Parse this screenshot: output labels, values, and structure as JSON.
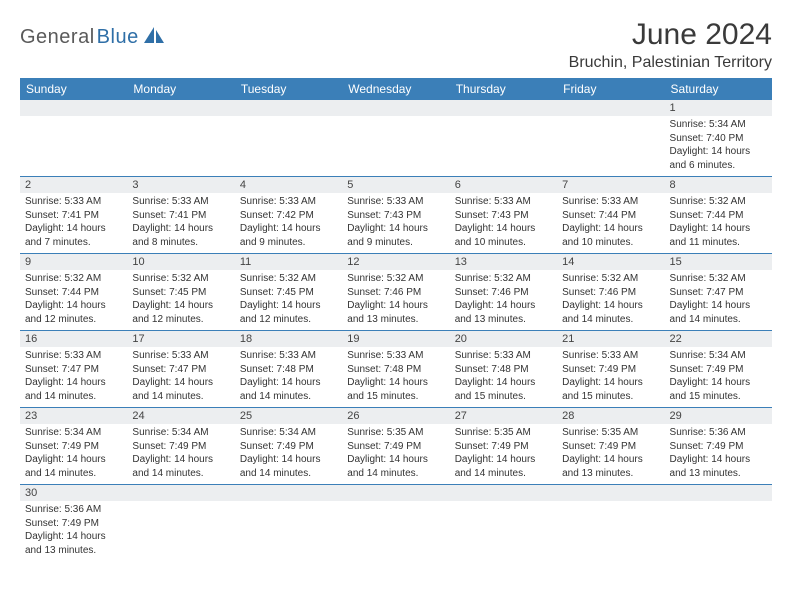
{
  "logo": {
    "word1": "General",
    "word2": "Blue",
    "color_dark": "#5a5a5a",
    "color_blue": "#2f6fa7"
  },
  "title": "June 2024",
  "location": "Bruchin, Palestinian Territory",
  "colors": {
    "header_bg": "#3b7fb8",
    "header_text": "#ffffff",
    "row_band": "#eceef0",
    "border": "#3b7fb8",
    "text": "#333333",
    "page_bg": "#ffffff"
  },
  "typography": {
    "title_fontsize": 30,
    "subtitle_fontsize": 16,
    "dayheader_fontsize": 12,
    "daynum_fontsize": 11,
    "detail_fontsize": 10
  },
  "day_headers": [
    "Sunday",
    "Monday",
    "Tuesday",
    "Wednesday",
    "Thursday",
    "Friday",
    "Saturday"
  ],
  "weeks": [
    [
      null,
      null,
      null,
      null,
      null,
      null,
      {
        "n": "1",
        "sr": "Sunrise: 5:34 AM",
        "ss": "Sunset: 7:40 PM",
        "dl1": "Daylight: 14 hours",
        "dl2": "and 6 minutes."
      }
    ],
    [
      {
        "n": "2",
        "sr": "Sunrise: 5:33 AM",
        "ss": "Sunset: 7:41 PM",
        "dl1": "Daylight: 14 hours",
        "dl2": "and 7 minutes."
      },
      {
        "n": "3",
        "sr": "Sunrise: 5:33 AM",
        "ss": "Sunset: 7:41 PM",
        "dl1": "Daylight: 14 hours",
        "dl2": "and 8 minutes."
      },
      {
        "n": "4",
        "sr": "Sunrise: 5:33 AM",
        "ss": "Sunset: 7:42 PM",
        "dl1": "Daylight: 14 hours",
        "dl2": "and 9 minutes."
      },
      {
        "n": "5",
        "sr": "Sunrise: 5:33 AM",
        "ss": "Sunset: 7:43 PM",
        "dl1": "Daylight: 14 hours",
        "dl2": "and 9 minutes."
      },
      {
        "n": "6",
        "sr": "Sunrise: 5:33 AM",
        "ss": "Sunset: 7:43 PM",
        "dl1": "Daylight: 14 hours",
        "dl2": "and 10 minutes."
      },
      {
        "n": "7",
        "sr": "Sunrise: 5:33 AM",
        "ss": "Sunset: 7:44 PM",
        "dl1": "Daylight: 14 hours",
        "dl2": "and 10 minutes."
      },
      {
        "n": "8",
        "sr": "Sunrise: 5:32 AM",
        "ss": "Sunset: 7:44 PM",
        "dl1": "Daylight: 14 hours",
        "dl2": "and 11 minutes."
      }
    ],
    [
      {
        "n": "9",
        "sr": "Sunrise: 5:32 AM",
        "ss": "Sunset: 7:44 PM",
        "dl1": "Daylight: 14 hours",
        "dl2": "and 12 minutes."
      },
      {
        "n": "10",
        "sr": "Sunrise: 5:32 AM",
        "ss": "Sunset: 7:45 PM",
        "dl1": "Daylight: 14 hours",
        "dl2": "and 12 minutes."
      },
      {
        "n": "11",
        "sr": "Sunrise: 5:32 AM",
        "ss": "Sunset: 7:45 PM",
        "dl1": "Daylight: 14 hours",
        "dl2": "and 12 minutes."
      },
      {
        "n": "12",
        "sr": "Sunrise: 5:32 AM",
        "ss": "Sunset: 7:46 PM",
        "dl1": "Daylight: 14 hours",
        "dl2": "and 13 minutes."
      },
      {
        "n": "13",
        "sr": "Sunrise: 5:32 AM",
        "ss": "Sunset: 7:46 PM",
        "dl1": "Daylight: 14 hours",
        "dl2": "and 13 minutes."
      },
      {
        "n": "14",
        "sr": "Sunrise: 5:32 AM",
        "ss": "Sunset: 7:46 PM",
        "dl1": "Daylight: 14 hours",
        "dl2": "and 14 minutes."
      },
      {
        "n": "15",
        "sr": "Sunrise: 5:32 AM",
        "ss": "Sunset: 7:47 PM",
        "dl1": "Daylight: 14 hours",
        "dl2": "and 14 minutes."
      }
    ],
    [
      {
        "n": "16",
        "sr": "Sunrise: 5:33 AM",
        "ss": "Sunset: 7:47 PM",
        "dl1": "Daylight: 14 hours",
        "dl2": "and 14 minutes."
      },
      {
        "n": "17",
        "sr": "Sunrise: 5:33 AM",
        "ss": "Sunset: 7:47 PM",
        "dl1": "Daylight: 14 hours",
        "dl2": "and 14 minutes."
      },
      {
        "n": "18",
        "sr": "Sunrise: 5:33 AM",
        "ss": "Sunset: 7:48 PM",
        "dl1": "Daylight: 14 hours",
        "dl2": "and 14 minutes."
      },
      {
        "n": "19",
        "sr": "Sunrise: 5:33 AM",
        "ss": "Sunset: 7:48 PM",
        "dl1": "Daylight: 14 hours",
        "dl2": "and 15 minutes."
      },
      {
        "n": "20",
        "sr": "Sunrise: 5:33 AM",
        "ss": "Sunset: 7:48 PM",
        "dl1": "Daylight: 14 hours",
        "dl2": "and 15 minutes."
      },
      {
        "n": "21",
        "sr": "Sunrise: 5:33 AM",
        "ss": "Sunset: 7:49 PM",
        "dl1": "Daylight: 14 hours",
        "dl2": "and 15 minutes."
      },
      {
        "n": "22",
        "sr": "Sunrise: 5:34 AM",
        "ss": "Sunset: 7:49 PM",
        "dl1": "Daylight: 14 hours",
        "dl2": "and 15 minutes."
      }
    ],
    [
      {
        "n": "23",
        "sr": "Sunrise: 5:34 AM",
        "ss": "Sunset: 7:49 PM",
        "dl1": "Daylight: 14 hours",
        "dl2": "and 14 minutes."
      },
      {
        "n": "24",
        "sr": "Sunrise: 5:34 AM",
        "ss": "Sunset: 7:49 PM",
        "dl1": "Daylight: 14 hours",
        "dl2": "and 14 minutes."
      },
      {
        "n": "25",
        "sr": "Sunrise: 5:34 AM",
        "ss": "Sunset: 7:49 PM",
        "dl1": "Daylight: 14 hours",
        "dl2": "and 14 minutes."
      },
      {
        "n": "26",
        "sr": "Sunrise: 5:35 AM",
        "ss": "Sunset: 7:49 PM",
        "dl1": "Daylight: 14 hours",
        "dl2": "and 14 minutes."
      },
      {
        "n": "27",
        "sr": "Sunrise: 5:35 AM",
        "ss": "Sunset: 7:49 PM",
        "dl1": "Daylight: 14 hours",
        "dl2": "and 14 minutes."
      },
      {
        "n": "28",
        "sr": "Sunrise: 5:35 AM",
        "ss": "Sunset: 7:49 PM",
        "dl1": "Daylight: 14 hours",
        "dl2": "and 13 minutes."
      },
      {
        "n": "29",
        "sr": "Sunrise: 5:36 AM",
        "ss": "Sunset: 7:49 PM",
        "dl1": "Daylight: 14 hours",
        "dl2": "and 13 minutes."
      }
    ],
    [
      {
        "n": "30",
        "sr": "Sunrise: 5:36 AM",
        "ss": "Sunset: 7:49 PM",
        "dl1": "Daylight: 14 hours",
        "dl2": "and 13 minutes."
      },
      null,
      null,
      null,
      null,
      null,
      null
    ]
  ]
}
